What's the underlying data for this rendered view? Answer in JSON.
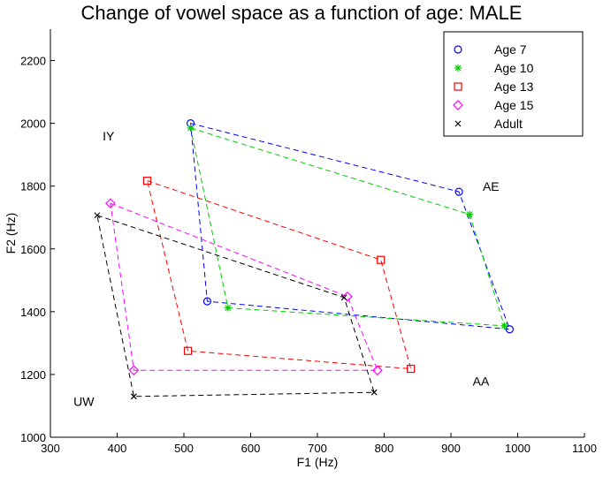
{
  "chart_data": {
    "type": "line",
    "title": "Change of vowel space as a function of age: MALE",
    "xlabel": "F1 (Hz)",
    "ylabel": "F2 (Hz)",
    "xlim": [
      300,
      1100
    ],
    "ylim": [
      1000,
      2300
    ],
    "x_ticks": [
      300,
      400,
      500,
      600,
      700,
      800,
      900,
      1000,
      1100
    ],
    "y_ticks": [
      1000,
      1200,
      1400,
      1600,
      1800,
      2000,
      2200
    ],
    "grid": false,
    "legend_position": "top-right",
    "vowel_order": [
      "IY",
      "AE",
      "AA",
      "UW"
    ],
    "series": [
      {
        "name": "Age 7",
        "color": "#0000ff",
        "marker": "circle",
        "points": [
          {
            "vowel": "IY",
            "x": 510,
            "y": 2000
          },
          {
            "vowel": "AE",
            "x": 912,
            "y": 1782
          },
          {
            "vowel": "AA",
            "x": 988,
            "y": 1344
          },
          {
            "vowel": "UW",
            "x": 535,
            "y": 1433
          }
        ]
      },
      {
        "name": "Age 10",
        "color": "#00cc00",
        "marker": "star",
        "points": [
          {
            "vowel": "IY",
            "x": 510,
            "y": 1985
          },
          {
            "vowel": "AE",
            "x": 928,
            "y": 1710
          },
          {
            "vowel": "AA",
            "x": 980,
            "y": 1355
          },
          {
            "vowel": "UW",
            "x": 566,
            "y": 1412
          }
        ]
      },
      {
        "name": "Age 13",
        "color": "#ff0000",
        "marker": "square",
        "points": [
          {
            "vowel": "IY",
            "x": 445,
            "y": 1817
          },
          {
            "vowel": "AE",
            "x": 795,
            "y": 1565
          },
          {
            "vowel": "AA",
            "x": 840,
            "y": 1218
          },
          {
            "vowel": "UW",
            "x": 506,
            "y": 1275
          }
        ]
      },
      {
        "name": "Age 15",
        "color": "#ff00ff",
        "marker": "diamond",
        "points": [
          {
            "vowel": "IY",
            "x": 390,
            "y": 1745
          },
          {
            "vowel": "AE",
            "x": 745,
            "y": 1448
          },
          {
            "vowel": "AA",
            "x": 790,
            "y": 1213
          },
          {
            "vowel": "UW",
            "x": 425,
            "y": 1213
          }
        ]
      },
      {
        "name": "Adult",
        "color": "#000000",
        "marker": "x",
        "points": [
          {
            "vowel": "IY",
            "x": 370,
            "y": 1707
          },
          {
            "vowel": "AE",
            "x": 740,
            "y": 1445
          },
          {
            "vowel": "AA",
            "x": 785,
            "y": 1143
          },
          {
            "vowel": "UW",
            "x": 425,
            "y": 1130
          }
        ]
      }
    ],
    "annotations": [
      {
        "text": "IY",
        "x": 387,
        "y": 1945
      },
      {
        "text": "AE",
        "x": 960,
        "y": 1785
      },
      {
        "text": "AA",
        "x": 945,
        "y": 1165
      },
      {
        "text": "UW",
        "x": 350,
        "y": 1100
      }
    ]
  }
}
